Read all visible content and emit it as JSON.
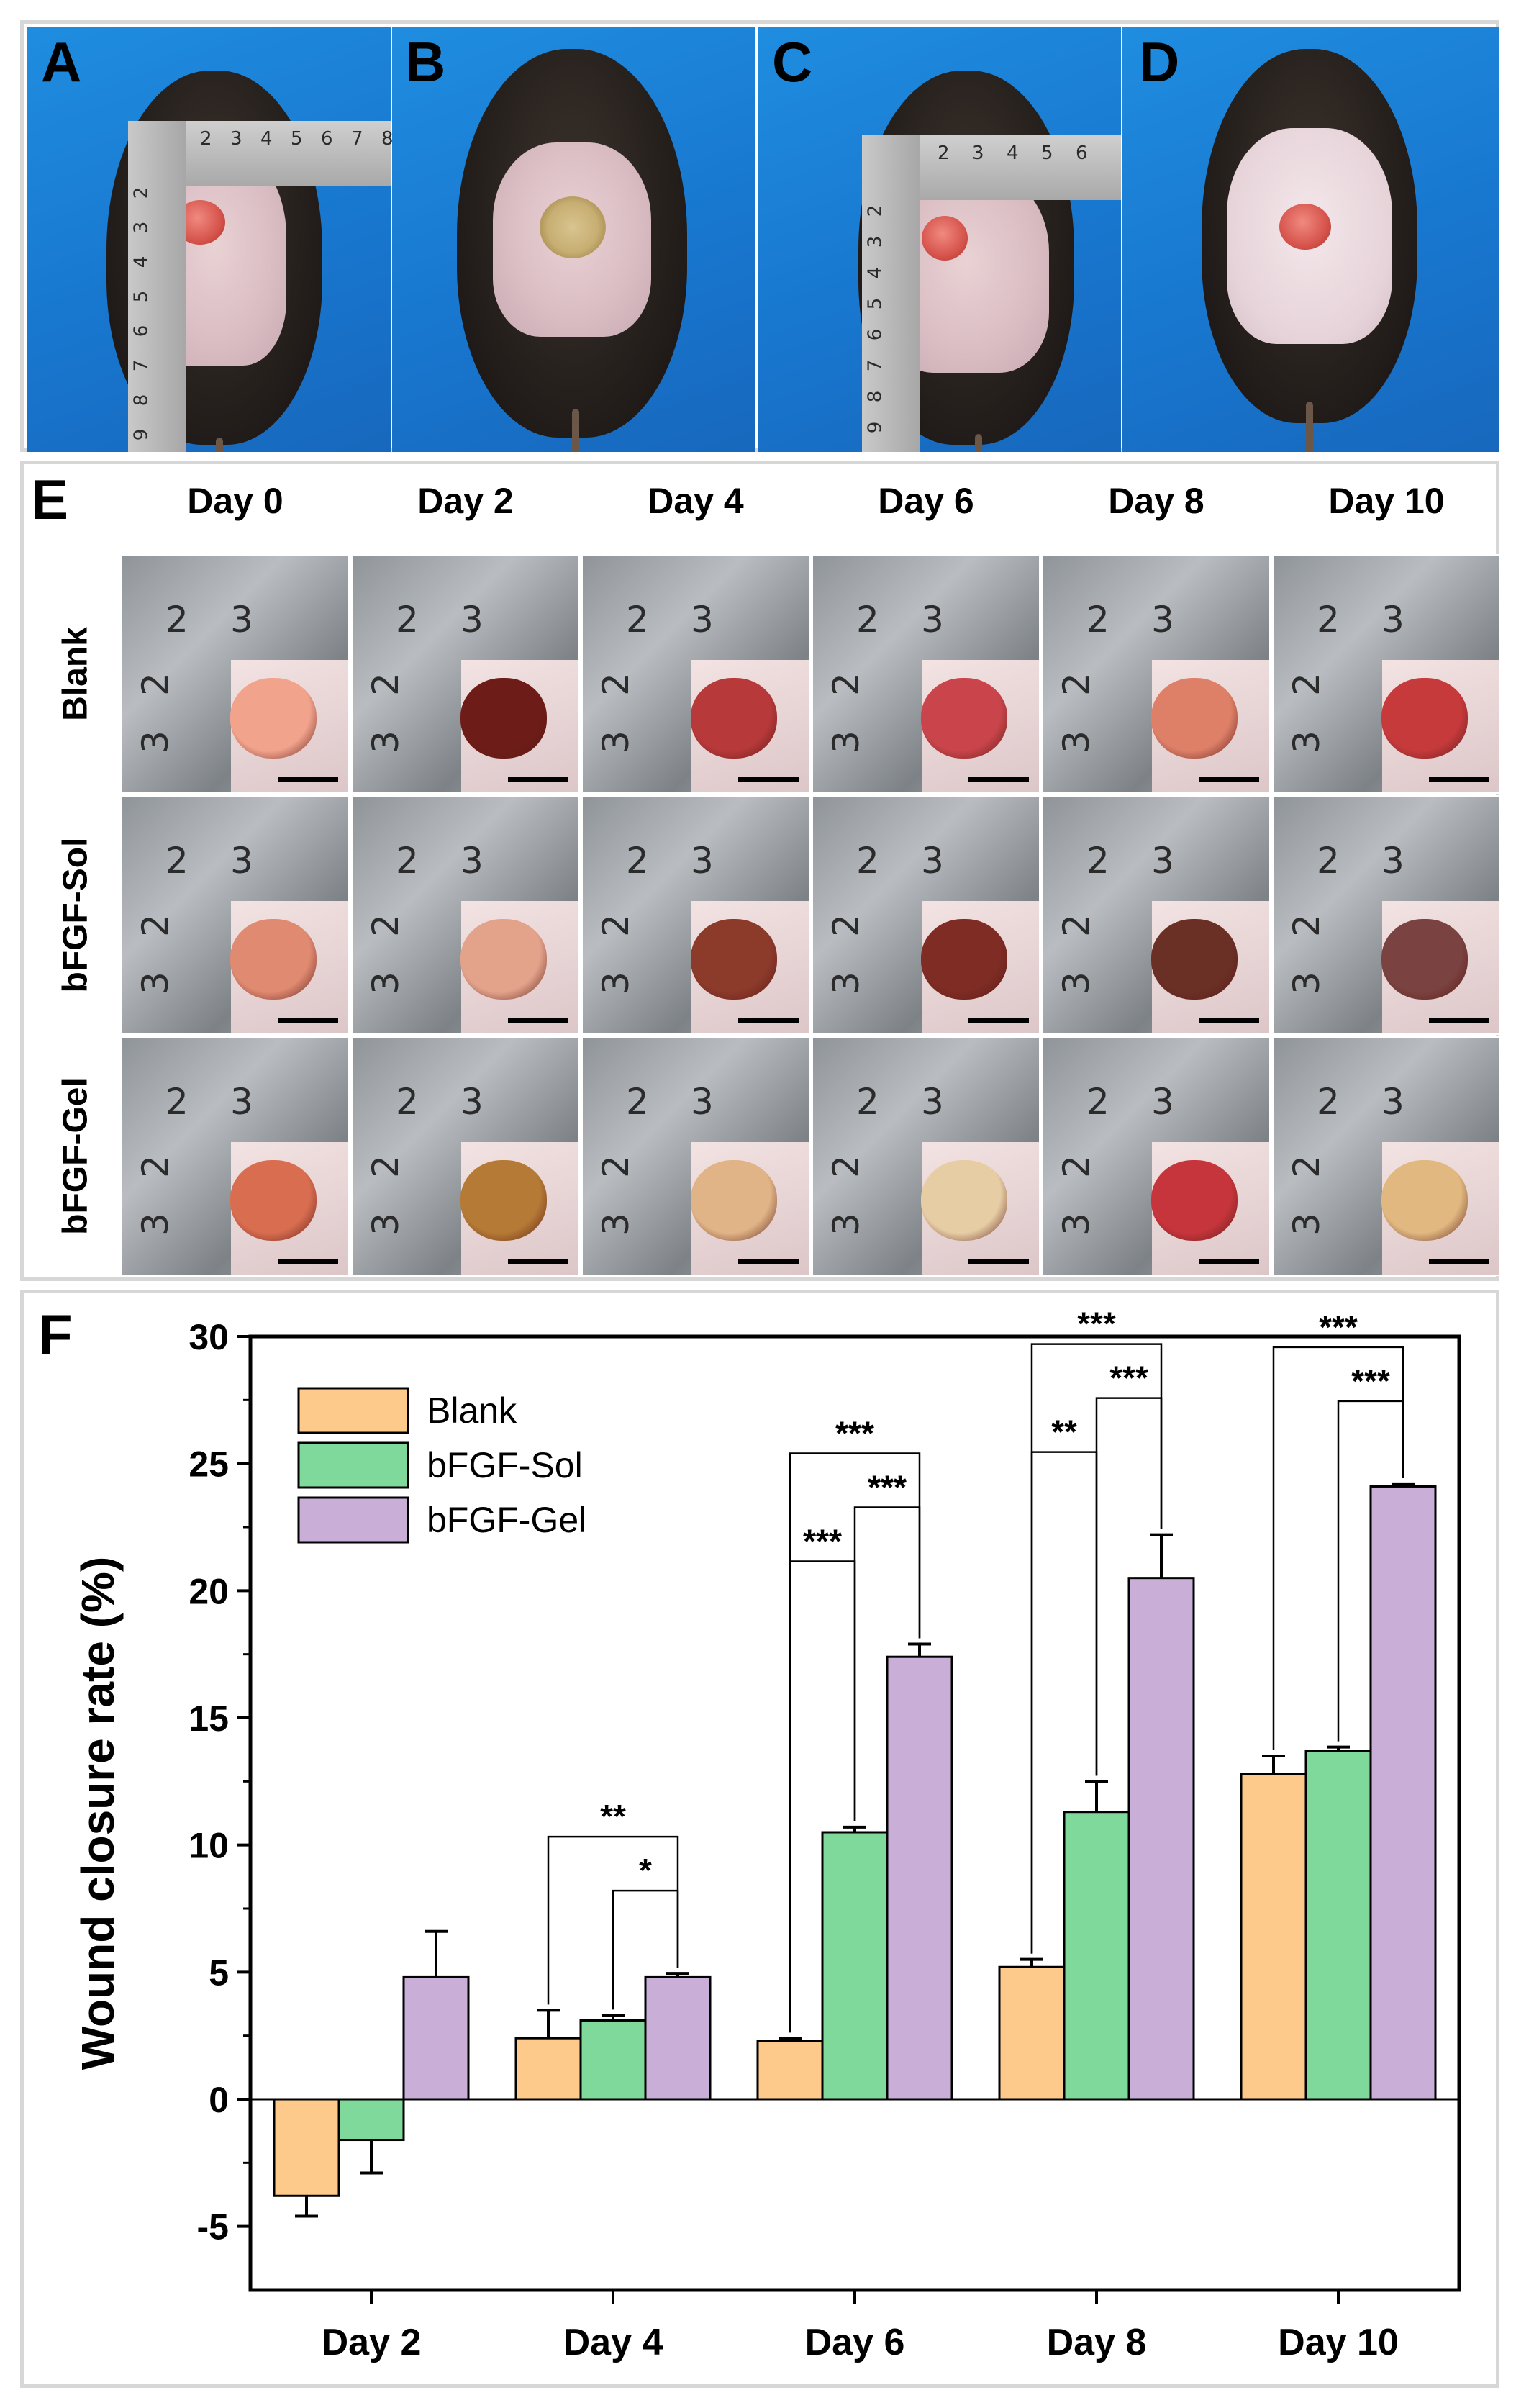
{
  "panels": {
    "top_letters": [
      "A",
      "B",
      "C",
      "D"
    ],
    "e_letter": "E",
    "f_letter": "F"
  },
  "ruler_numbers_a": [
    "2",
    "3",
    "4",
    "5",
    "6",
    "7",
    "8"
  ],
  "ruler_numbers_a_v": [
    "2",
    "3",
    "4",
    "5",
    "6",
    "7",
    "8",
    "9"
  ],
  "ruler_numbers_c": [
    "2",
    "3",
    "4",
    "5",
    "6"
  ],
  "ruler_numbers_c_v": [
    "2",
    "3",
    "4",
    "5",
    "6",
    "7",
    "8",
    "9"
  ],
  "grid": {
    "days": [
      "Day 0",
      "Day 2",
      "Day 4",
      "Day 6",
      "Day 8",
      "Day 10"
    ],
    "rows": [
      "Blank",
      "bFGF-Sol",
      "bFGF-Gel"
    ],
    "tile_numbers": [
      "2",
      "3",
      "2",
      "3"
    ]
  },
  "colors": {
    "blank": "#fdca8c",
    "sol": "#7fd99b",
    "gel": "#c9afd8"
  },
  "chart_data": {
    "type": "bar",
    "ylabel": "Wound closure rate (%)",
    "xlabel": "",
    "categories": [
      "Day 2",
      "Day 4",
      "Day 6",
      "Day 8",
      "Day 10"
    ],
    "ylim": [
      -7.5,
      30
    ],
    "yticks": [
      -5,
      0,
      5,
      10,
      15,
      20,
      25,
      30
    ],
    "ytick_labels": [
      "-5",
      "0",
      "5",
      "10",
      "15",
      "20",
      "25",
      "30"
    ],
    "legend_position": "top-left",
    "series": [
      {
        "name": "Blank",
        "values": [
          -3.8,
          2.4,
          2.3,
          5.2,
          12.8
        ],
        "errors": [
          0.8,
          1.1,
          0.1,
          0.3,
          0.7
        ]
      },
      {
        "name": "bFGF-Sol",
        "values": [
          -1.6,
          3.1,
          10.5,
          11.3,
          13.7
        ],
        "errors": [
          1.3,
          0.2,
          0.2,
          1.2,
          0.15
        ]
      },
      {
        "name": "bFGF-Gel",
        "values": [
          4.8,
          4.8,
          17.4,
          20.5,
          24.1
        ],
        "errors": [
          1.8,
          0.15,
          0.5,
          1.7,
          0.1
        ]
      }
    ],
    "significance": [
      {
        "category": "Day 4",
        "from": "Blank",
        "to": "bFGF-Gel",
        "label": "**",
        "level": 2
      },
      {
        "category": "Day 4",
        "from": "bFGF-Sol",
        "to": "bFGF-Gel",
        "label": "*",
        "level": 1
      },
      {
        "category": "Day 6",
        "from": "Blank",
        "to": "bFGF-Gel",
        "label": "***",
        "level": 3
      },
      {
        "category": "Day 6",
        "from": "bFGF-Sol",
        "to": "bFGF-Gel",
        "label": "***",
        "level": 2
      },
      {
        "category": "Day 6",
        "from": "Blank",
        "to": "bFGF-Sol",
        "label": "***",
        "level": 1
      },
      {
        "category": "Day 8",
        "from": "Blank",
        "to": "bFGF-Gel",
        "label": "***",
        "level": 3
      },
      {
        "category": "Day 8",
        "from": "bFGF-Sol",
        "to": "bFGF-Gel",
        "label": "***",
        "level": 2
      },
      {
        "category": "Day 8",
        "from": "Blank",
        "to": "bFGF-Sol",
        "label": "**",
        "level": 1
      },
      {
        "category": "Day 10",
        "from": "Blank",
        "to": "bFGF-Gel",
        "label": "***",
        "level": 2
      },
      {
        "category": "Day 10",
        "from": "bFGF-Sol",
        "to": "bFGF-Gel",
        "label": "***",
        "level": 1
      }
    ]
  }
}
